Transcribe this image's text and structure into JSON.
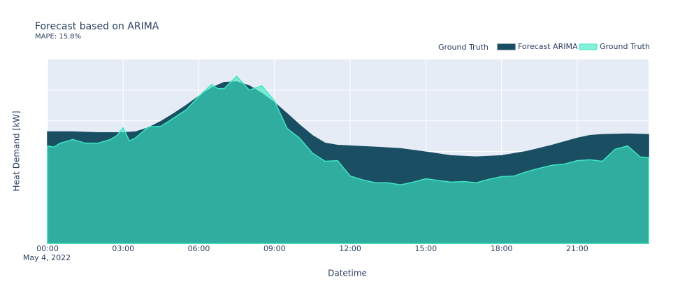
{
  "chart_data": {
    "type": "area",
    "title": "Forecast based on ARIMA",
    "subtitle": "MAPE: 15.8%",
    "xlabel": "Datetime",
    "ylabel": "Heat Demand [kW]",
    "x_date_label": "May 4, 2022",
    "legend_title": "Ground Truth",
    "legend_position": "top-right",
    "grid": true,
    "show_ytick_labels": false,
    "xlim": [
      0,
      23.83
    ],
    "xticks": [
      {
        "value": 0,
        "label": "00:00"
      },
      {
        "value": 3,
        "label": "03:00"
      },
      {
        "value": 6,
        "label": "06:00"
      },
      {
        "value": 9,
        "label": "09:00"
      },
      {
        "value": 12,
        "label": "12:00"
      },
      {
        "value": 15,
        "label": "15:00"
      },
      {
        "value": 18,
        "label": "18:00"
      },
      {
        "value": 21,
        "label": "21:00"
      }
    ],
    "ylim": [
      0,
      6
    ],
    "yticks": [
      0,
      1,
      2,
      3,
      4,
      5
    ],
    "series": [
      {
        "name": "Forecast ARIMA",
        "color": "#1a4f63",
        "opacity": 1,
        "x": [
          0,
          1,
          2,
          3,
          3.5,
          4,
          4.5,
          5,
          5.5,
          6,
          6.5,
          7,
          7.5,
          8,
          8.5,
          9,
          9.5,
          10,
          10.5,
          11,
          11.5,
          12,
          13,
          14,
          15,
          16,
          17,
          18,
          19,
          20,
          21,
          21.5,
          22,
          23,
          23.83
        ],
        "values": [
          3.64,
          3.64,
          3.61,
          3.61,
          3.64,
          3.77,
          3.98,
          4.23,
          4.5,
          4.8,
          5.07,
          5.25,
          5.27,
          5.14,
          4.89,
          4.59,
          4.23,
          3.86,
          3.52,
          3.27,
          3.2,
          3.18,
          3.14,
          3.09,
          2.98,
          2.86,
          2.82,
          2.86,
          3.0,
          3.2,
          3.43,
          3.52,
          3.55,
          3.57,
          3.55
        ]
      },
      {
        "name": "Ground Truth",
        "color": "#3ee6c4",
        "opacity": 0.62,
        "x": [
          0,
          0.25,
          0.5,
          1,
          1.5,
          2,
          2.5,
          2.75,
          3,
          3.25,
          3.5,
          4,
          4.5,
          5,
          5.5,
          6,
          6.5,
          6.75,
          7,
          7.5,
          8,
          8.5,
          9,
          9.5,
          10,
          10.5,
          11,
          11.5,
          12,
          12.5,
          13,
          13.5,
          14,
          14.5,
          15,
          15.5,
          16,
          16.5,
          17,
          17.5,
          18,
          18.5,
          19,
          19.5,
          20,
          20.5,
          21,
          21.5,
          22,
          22.5,
          23,
          23.5,
          23.83
        ],
        "values": [
          3.18,
          3.14,
          3.27,
          3.39,
          3.27,
          3.27,
          3.39,
          3.52,
          3.77,
          3.34,
          3.45,
          3.8,
          3.82,
          4.09,
          4.36,
          4.8,
          5.18,
          5.05,
          5.05,
          5.45,
          5.0,
          5.14,
          4.64,
          3.75,
          3.43,
          2.95,
          2.68,
          2.7,
          2.2,
          2.07,
          1.98,
          1.98,
          1.91,
          2.0,
          2.11,
          2.05,
          2.0,
          2.02,
          1.98,
          2.09,
          2.18,
          2.2,
          2.34,
          2.45,
          2.55,
          2.59,
          2.7,
          2.73,
          2.68,
          3.07,
          3.18,
          2.82,
          2.8
        ]
      }
    ]
  }
}
